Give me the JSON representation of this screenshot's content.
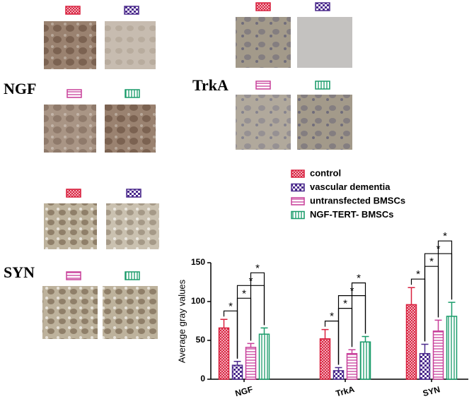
{
  "panels": {
    "ngf": "NGF",
    "trka": "TrkA",
    "syn": "SYN"
  },
  "chart_data": {
    "type": "bar",
    "ylabel": "Average gray values",
    "categories": [
      "NGF",
      "TrkA",
      "SYN"
    ],
    "series": [
      {
        "name": "control",
        "color": "#d9213f",
        "values": [
          66,
          52,
          96
        ],
        "errors": [
          11,
          12,
          22
        ]
      },
      {
        "name": "vascular dementia",
        "color": "#4b2a8c",
        "values": [
          18,
          11,
          33
        ],
        "errors": [
          5,
          4,
          12
        ]
      },
      {
        "name": "untransfected BMSCs",
        "color": "#c8409a",
        "values": [
          41,
          33,
          62
        ],
        "errors": [
          5,
          5,
          14
        ]
      },
      {
        "name": "NGF-TERT- BMSCs",
        "color": "#1a9c6a",
        "values": [
          58,
          48,
          81
        ],
        "errors": [
          8,
          7,
          18
        ]
      }
    ],
    "ylim": [
      0,
      150
    ],
    "yticks": [
      0,
      50,
      100,
      150
    ],
    "annotations": [
      "*",
      "*",
      "*",
      "*",
      "*",
      "*",
      "*",
      "*",
      "*",
      "*",
      "*",
      "*"
    ]
  }
}
